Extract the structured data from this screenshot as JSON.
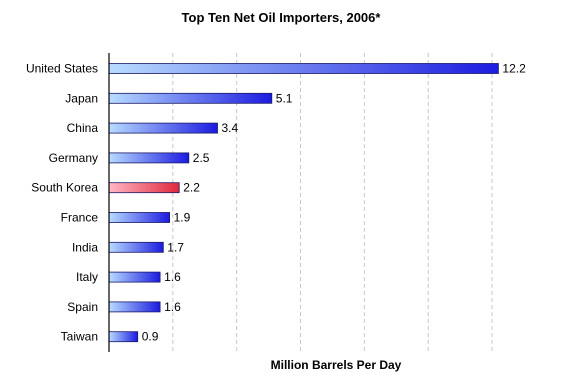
{
  "chart_data": {
    "type": "bar",
    "orientation": "horizontal",
    "title": "Top Ten Net Oil Importers, 2006*",
    "xlabel": "Million Barrels Per Day",
    "ylabel": "",
    "categories": [
      "United States",
      "Japan",
      "China",
      "Germany",
      "South Korea",
      "France",
      "India",
      "Italy",
      "Spain",
      "Taiwan"
    ],
    "values": [
      12.2,
      5.1,
      3.4,
      2.5,
      2.2,
      1.9,
      1.7,
      1.6,
      1.6,
      0.9
    ],
    "value_labels": [
      "12.2",
      "5.1",
      "3.4",
      "2.5",
      "2.2",
      "1.9",
      "1.7",
      "1.6",
      "1.6",
      "0.9"
    ],
    "highlighted_category": "South Korea",
    "xlim": [
      0,
      12.5
    ],
    "grid": "vertical dashed",
    "tick_labels_visible": false,
    "colors": {
      "bar_start": "#b8dcff",
      "bar_end": "#1b1be0",
      "highlight_start": "#ffb8c6",
      "highlight_end": "#e0283c",
      "bar_outline": "#1a1a66",
      "grid": "#c8c8c8",
      "axis": "#000000"
    }
  }
}
